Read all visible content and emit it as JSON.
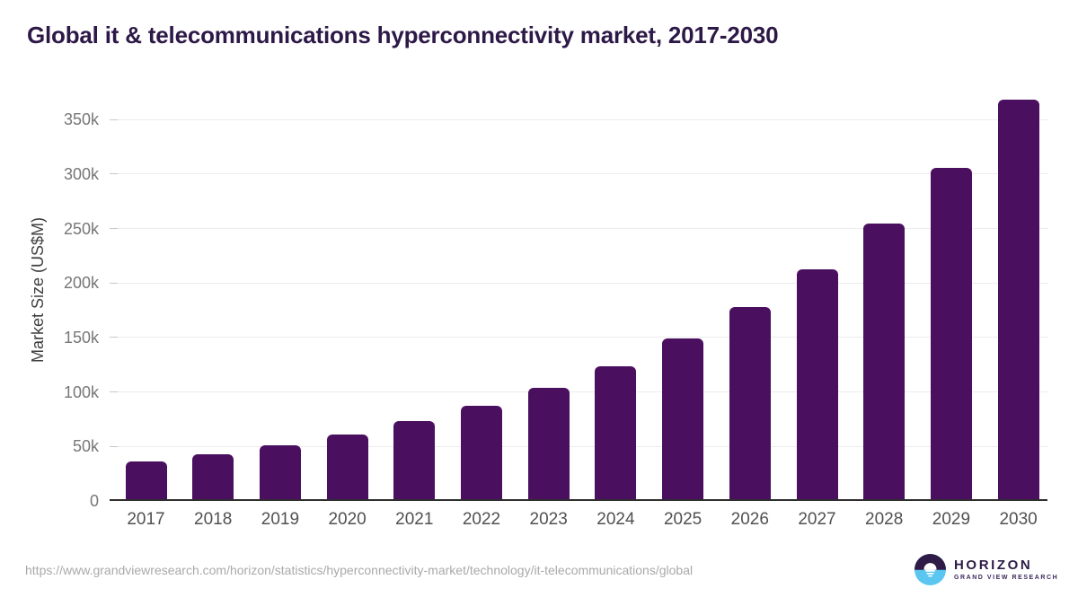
{
  "title": "Global it & telecommunications hyperconnectivity market, 2017-2030",
  "footer": {
    "source_url": "https://www.grandviewresearch.com/horizon/statistics/hyperconnectivity-market/technology/it-telecommunications/global",
    "logo": {
      "brand": "HORIZON",
      "sub_brand": "GRAND VIEW RESEARCH"
    }
  },
  "colors": {
    "bar": "#4a105f",
    "title": "#2d1947",
    "grid_line": "#ececec",
    "tick_mark": "#c8c8c8",
    "axis_line": "#2e2e2e",
    "y_label": "#777777",
    "x_label": "#515151",
    "axis_title": "#3f3f3f",
    "url_text": "#a9a9a9",
    "logo_purple": "#2e1b47",
    "logo_blue": "#5bc6f0"
  },
  "chart_data": {
    "type": "bar",
    "title": "Global it & telecommunications hyperconnectivity market, 2017-2030",
    "categories": [
      "2017",
      "2018",
      "2019",
      "2020",
      "2021",
      "2022",
      "2023",
      "2024",
      "2025",
      "2026",
      "2027",
      "2028",
      "2029",
      "2030"
    ],
    "values": [
      36000,
      43000,
      51000,
      61000,
      73000,
      87000,
      104000,
      124000,
      149000,
      178000,
      213000,
      255000,
      306000,
      368000
    ],
    "unit": "US$M",
    "xlabel": "",
    "ylabel": "Market Size (US$M)",
    "ylim": [
      0,
      377000
    ],
    "ytick_values": [
      0,
      50000,
      100000,
      150000,
      200000,
      250000,
      300000,
      350000
    ],
    "ytick_labels": [
      "0",
      "50k",
      "100k",
      "150k",
      "200k",
      "250k",
      "300k",
      "350k"
    ],
    "grid": true,
    "legend": false,
    "bar_color": "#4a105f"
  }
}
